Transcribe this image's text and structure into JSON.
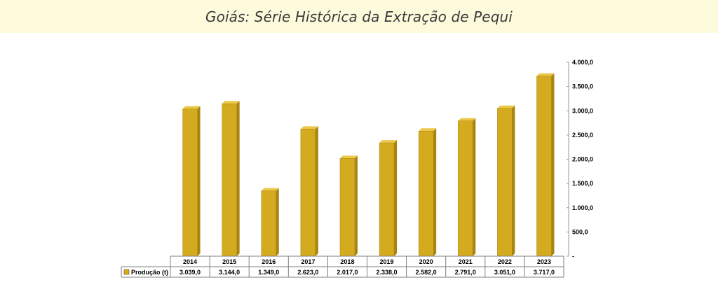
{
  "title": "Goiás: Série Histórica da Extração de Pequi",
  "colors": {
    "banner": "#fdfbdc",
    "bar_front": "#d4aa1e",
    "bar_side": "#a88410",
    "bar_top": "#ecc84a"
  },
  "chart_data": {
    "type": "bar",
    "title": "Goiás: Série Histórica da Extração de Pequi",
    "categories": [
      "2014",
      "2015",
      "2016",
      "2017",
      "2018",
      "2019",
      "2020",
      "2021",
      "2022",
      "2023"
    ],
    "series": [
      {
        "name": "Produção (t)",
        "values": [
          3039.0,
          3144.0,
          1349.0,
          2623.0,
          2017.0,
          2338.0,
          2582.0,
          2791.0,
          3051.0,
          3717.0
        ],
        "value_labels": [
          "3.039,0",
          "3.144,0",
          "1.349,0",
          "2.623,0",
          "2.017,0",
          "2.338,0",
          "2.582,0",
          "2.791,0",
          "3.051,0",
          "3.717,0"
        ]
      }
    ],
    "ylim": [
      0,
      4000
    ],
    "yticks": [
      0,
      500,
      1000,
      1500,
      2000,
      2500,
      3000,
      3500,
      4000
    ],
    "ytick_labels": [
      "-",
      "500,0",
      "1.000,0",
      "1.500,0",
      "2.000,0",
      "2.500,0",
      "3.000,0",
      "3.500,0",
      "4.000,0"
    ],
    "y_axis_side": "right",
    "grid": false,
    "legend": "data-table-below"
  }
}
